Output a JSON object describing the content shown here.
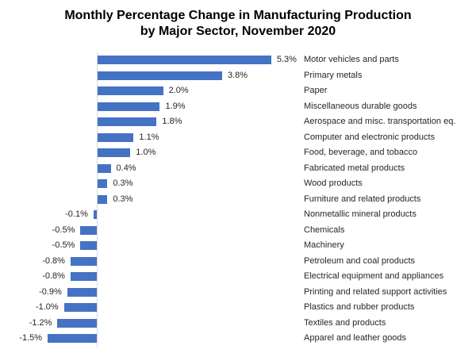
{
  "title": {
    "line1": "Monthly Percentage Change in Manufacturing Production",
    "line2": "by Major Sector, November 2020"
  },
  "chart_data": {
    "type": "bar",
    "orientation": "horizontal",
    "title": "Monthly Percentage Change in Manufacturing Production by Major Sector, November 2020",
    "categories": [
      "Motor vehicles and parts",
      "Primary metals",
      "Paper",
      "Miscellaneous durable goods",
      "Aerospace and misc. transportation eq.",
      "Computer and electronic products",
      "Food, beverage, and tobacco",
      "Fabricated metal products",
      "Wood products",
      "Furniture and related products",
      "Nonmetallic mineral products",
      "Chemicals",
      "Machinery",
      "Petroleum and coal products",
      "Electrical equipment and appliances",
      "Printing and related support activities",
      "Plastics and rubber products",
      "Textiles and products",
      "Apparel and leather goods"
    ],
    "values": [
      5.3,
      3.8,
      2.0,
      1.9,
      1.8,
      1.1,
      1.0,
      0.4,
      0.3,
      0.3,
      -0.1,
      -0.5,
      -0.5,
      -0.8,
      -0.8,
      -0.9,
      -1.0,
      -1.2,
      -1.5
    ],
    "value_labels": [
      "5.3%",
      "3.8%",
      "2.0%",
      "1.9%",
      "1.8%",
      "1.1%",
      "1.0%",
      "0.4%",
      "0.3%",
      "0.3%",
      "-0.1%",
      "-0.5%",
      "-0.5%",
      "-0.8%",
      "-0.8%",
      "-0.9%",
      "-1.0%",
      "-1.2%",
      "-1.5%"
    ],
    "xlim": [
      -1.5,
      5.3
    ],
    "xlabel": "",
    "ylabel": "",
    "grid": false,
    "legend": false,
    "bar_color": "#4472C4",
    "axis_color": "#d9d9d9",
    "label_color": "#262626"
  }
}
